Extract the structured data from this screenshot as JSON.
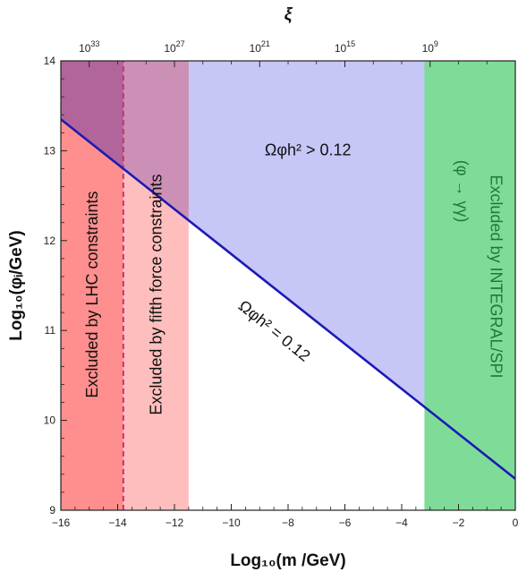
{
  "chart_data": {
    "type": "area",
    "title": "",
    "xlabel": "Log₁₀(m /GeV)",
    "ylabel": "Log₁₀(φᵢ/GeV)",
    "top_axis_label": "ξ",
    "xlim": [
      -16,
      0
    ],
    "ylim": [
      9,
      14
    ],
    "x_ticks": [
      -16,
      -14,
      -12,
      -10,
      -8,
      -6,
      -4,
      -2,
      0
    ],
    "x_tick_labels": [
      "−16",
      "−14",
      "−12",
      "−10",
      "−8",
      "−6",
      "−4",
      "−2",
      "0"
    ],
    "y_ticks": [
      9,
      10,
      11,
      12,
      13,
      14
    ],
    "y_tick_labels": [
      "9",
      "10",
      "11",
      "12",
      "13",
      "14"
    ],
    "top_ticks": [
      {
        "x": -15.0,
        "base": "10",
        "exp": "33"
      },
      {
        "x": -12.0,
        "base": "10",
        "exp": "27"
      },
      {
        "x": -9.0,
        "base": "10",
        "exp": "21"
      },
      {
        "x": -6.0,
        "base": "10",
        "exp": "15"
      },
      {
        "x": -3.0,
        "base": "10",
        "exp": "9"
      }
    ],
    "relic_line": {
      "label": "Ωφh² = 0.12",
      "x": [
        -16,
        0
      ],
      "y": [
        13.35,
        9.35
      ],
      "color": "#1a1ab5"
    },
    "regions": [
      {
        "id": "overabundant",
        "label": "Ωφh² > 0.12",
        "color": "#c6c6f7"
      },
      {
        "id": "lhc",
        "label": "Excluded by LHC constraints",
        "x_range": [
          -16,
          -13.8
        ],
        "color": "#ff7a7a",
        "boundary_style": "dashed"
      },
      {
        "id": "fifth-force",
        "label": "Excluded by fifth force constraints",
        "x_range": [
          -13.8,
          -11.5
        ],
        "color": "#ffb3b3"
      },
      {
        "id": "integral",
        "label": "Excluded by INTEGRAL/SPI",
        "sublabel": "(φ → γγ)",
        "x_range": [
          -3.2,
          0
        ],
        "color": "#7fdc98"
      }
    ]
  }
}
